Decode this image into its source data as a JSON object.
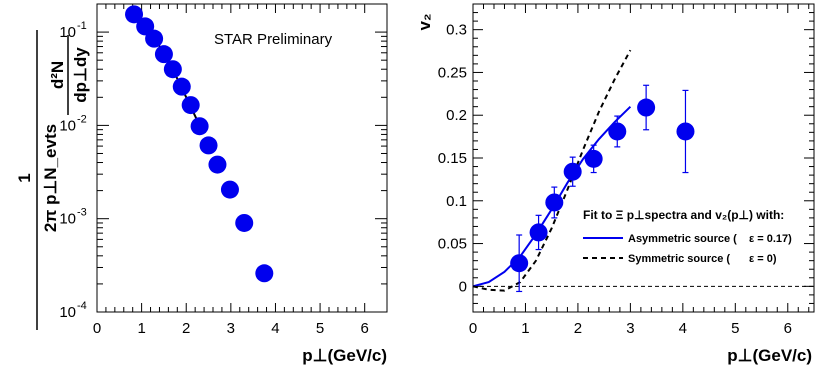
{
  "chart_data": [
    {
      "type": "scatter",
      "title": "",
      "annotation": "STAR Preliminary",
      "xlabel": "p⊥(GeV/c)",
      "ylabel_numerator": "1",
      "ylabel_denominator": "2π p⊥N_evts",
      "ylabel_expr_top": "d²N",
      "ylabel_expr_bottom": "dp⊥dy",
      "xlim": [
        0,
        6.5
      ],
      "ylim": [
        0.0001,
        0.2
      ],
      "yscale": "log",
      "xticks": [
        0,
        1,
        2,
        3,
        4,
        5,
        6
      ],
      "yticks": [
        {
          "value": 0.0001,
          "base": "10",
          "exp": "-4"
        },
        {
          "value": 0.001,
          "base": "10",
          "exp": "-3"
        },
        {
          "value": 0.01,
          "base": "10",
          "exp": "-2"
        },
        {
          "value": 0.1,
          "base": "10",
          "exp": "-1"
        }
      ],
      "points": [
        {
          "x": 0.83,
          "y": 0.155
        },
        {
          "x": 1.08,
          "y": 0.115
        },
        {
          "x": 1.28,
          "y": 0.085
        },
        {
          "x": 1.5,
          "y": 0.058
        },
        {
          "x": 1.7,
          "y": 0.04
        },
        {
          "x": 1.9,
          "y": 0.026
        },
        {
          "x": 2.1,
          "y": 0.0165
        },
        {
          "x": 2.3,
          "y": 0.0098
        },
        {
          "x": 2.5,
          "y": 0.0061
        },
        {
          "x": 2.7,
          "y": 0.0038
        },
        {
          "x": 2.98,
          "y": 0.00205
        },
        {
          "x": 3.3,
          "y": 0.0009
        },
        {
          "x": 3.75,
          "y": 0.00026
        }
      ],
      "fit": [
        {
          "x": 0.85,
          "y": 0.155
        },
        {
          "x": 1.2,
          "y": 0.1
        },
        {
          "x": 1.6,
          "y": 0.05
        },
        {
          "x": 2.0,
          "y": 0.02
        },
        {
          "x": 2.3,
          "y": 0.01
        }
      ],
      "colors": {
        "marker": "#0000ee",
        "fit": "#000000"
      }
    },
    {
      "type": "scatter",
      "title": "",
      "xlabel": "p⊥(GeV/c)",
      "ylabel": "v₂",
      "xlim": [
        0,
        6.5
      ],
      "ylim": [
        -0.03,
        0.33
      ],
      "xticks": [
        0,
        1,
        2,
        3,
        4,
        5,
        6
      ],
      "yticks": [
        0,
        0.05,
        0.1,
        0.15,
        0.2,
        0.25,
        0.3
      ],
      "ytick_labels": [
        "0",
        "0.05",
        "0.1",
        "0.15",
        "0.2",
        "0.25",
        "0.3"
      ],
      "points": [
        {
          "x": 0.88,
          "y": 0.027,
          "err": 0.033
        },
        {
          "x": 1.25,
          "y": 0.063,
          "err": 0.02
        },
        {
          "x": 1.55,
          "y": 0.098,
          "err": 0.018
        },
        {
          "x": 1.9,
          "y": 0.134,
          "err": 0.017
        },
        {
          "x": 2.3,
          "y": 0.149,
          "err": 0.016
        },
        {
          "x": 2.75,
          "y": 0.181,
          "err": 0.018
        },
        {
          "x": 3.3,
          "y": 0.209,
          "err": 0.026
        },
        {
          "x": 4.05,
          "y": 0.181,
          "err": 0.048
        }
      ],
      "asymmetric_fit": [
        {
          "x": 0.0,
          "y": 0.0
        },
        {
          "x": 0.3,
          "y": 0.005
        },
        {
          "x": 0.6,
          "y": 0.017
        },
        {
          "x": 0.9,
          "y": 0.035
        },
        {
          "x": 1.2,
          "y": 0.061
        },
        {
          "x": 1.5,
          "y": 0.09
        },
        {
          "x": 1.8,
          "y": 0.121
        },
        {
          "x": 2.1,
          "y": 0.149
        },
        {
          "x": 2.4,
          "y": 0.172
        },
        {
          "x": 2.7,
          "y": 0.192
        },
        {
          "x": 3.0,
          "y": 0.21
        }
      ],
      "symmetric_fit": [
        {
          "x": 0.0,
          "y": 0.0
        },
        {
          "x": 0.3,
          "y": -0.004
        },
        {
          "x": 0.6,
          "y": -0.005
        },
        {
          "x": 0.9,
          "y": 0.005
        },
        {
          "x": 1.2,
          "y": 0.03
        },
        {
          "x": 1.5,
          "y": 0.068
        },
        {
          "x": 1.8,
          "y": 0.113
        },
        {
          "x": 2.1,
          "y": 0.16
        },
        {
          "x": 2.4,
          "y": 0.204
        },
        {
          "x": 2.7,
          "y": 0.242
        },
        {
          "x": 3.0,
          "y": 0.276
        }
      ],
      "zero_line": 0,
      "legend": {
        "title": "Fit to Ξ p⊥spectra and v₂(p⊥) with:",
        "items": [
          {
            "label": "Asymmetric source (",
            "param": "ε = 0.17)",
            "style": "solid"
          },
          {
            "label": "Symmetric source (",
            "param": "ε = 0)",
            "style": "dashed"
          }
        ],
        "placement": "center-right"
      },
      "colors": {
        "marker": "#0000ee",
        "asymmetric": "#0000ee",
        "symmetric": "#000000"
      }
    }
  ]
}
